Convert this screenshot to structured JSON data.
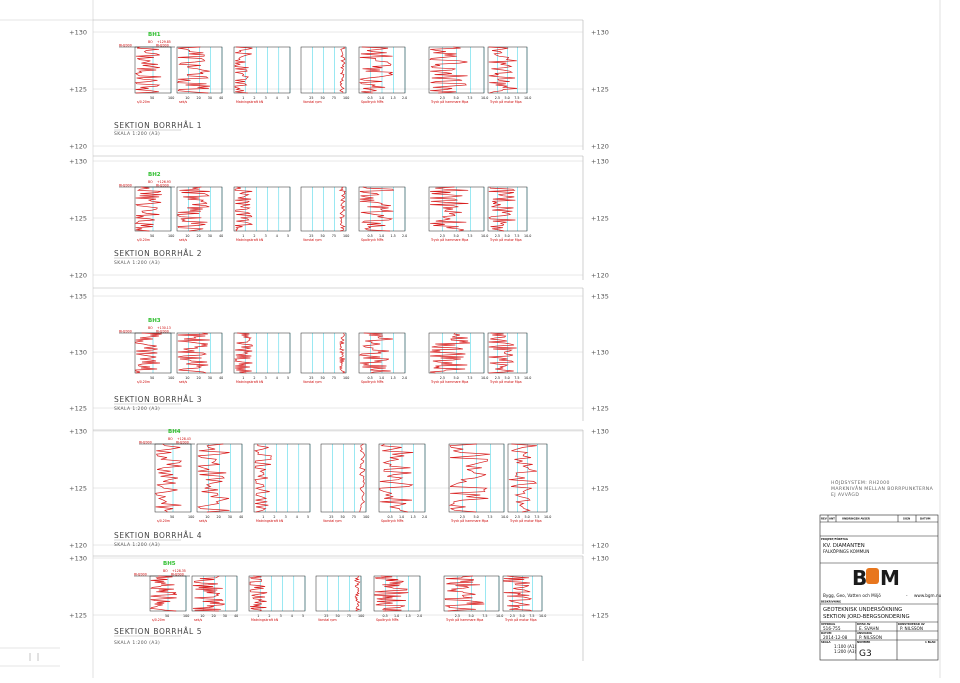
{
  "page": {
    "profile_start_label": "BO",
    "profile_ref_label": "RH2000",
    "note_lines": [
      "HÖJDSYSTEM: RH2000",
      "MARKNIVÅN MELLAN BORRPUNKTERNA",
      "EJ AVVÄGD"
    ],
    "axis_labels": {
      "p0": "s/0.20m",
      "p1": "sek/s",
      "p2": "Matningskraft kN",
      "p3": "Varvtal rpm",
      "p4": "Spoltryck MPa",
      "p5": "Tryck på hammare Mpa",
      "p6": "Tryck på motor Mpa"
    },
    "ticks": {
      "p0": [
        "50",
        "100"
      ],
      "p1": [
        "10",
        "20",
        "30",
        "40"
      ],
      "p2": [
        "1",
        "2",
        "3",
        "4",
        "5"
      ],
      "p3": [
        "25",
        "50",
        "75",
        "100"
      ],
      "p4": [
        "0.5",
        "1.0",
        "1.5",
        "2.0"
      ],
      "p5": [
        "2.5",
        "5.0",
        "7.5",
        "10.0"
      ],
      "p6": [
        "2.5",
        "5.0",
        "7.5",
        "10.0"
      ]
    }
  },
  "sections": [
    {
      "title": "SEKTION BORRHÅL 1",
      "scale": "SKALA 1:200 (A3)",
      "borehole": "BH1",
      "ground_level": "+129.85",
      "elevations": [
        "+130",
        "+125",
        "+120"
      ]
    },
    {
      "title": "SEKTION BORRHÅL 2",
      "scale": "SKALA 1:200 (A3)",
      "borehole": "BH2",
      "ground_level": "+126.93",
      "elevations": [
        "+130",
        "+125",
        "+120"
      ]
    },
    {
      "title": "SEKTION BORRHÅL 3",
      "scale": "SKALA 1:200 (A3)",
      "borehole": "BH3",
      "ground_level": "+130.13",
      "elevations": [
        "+135",
        "+130",
        "+125"
      ]
    },
    {
      "title": "SEKTION BORRHÅL 4",
      "scale": "SKALA 1:200 (A3)",
      "borehole": "BH4",
      "ground_level": "+128.43",
      "elevations": [
        "+130",
        "+125",
        "+120"
      ]
    },
    {
      "title": "SEKTION BORRHÅL 5",
      "scale": "SKALA 1:200 (A3)",
      "borehole": "BH5",
      "ground_level": "+128.35",
      "elevations": [
        "+130",
        "+125"
      ]
    }
  ],
  "title_block": {
    "rev_headers": [
      "REV",
      "ANT",
      "ÄNDRINGEN AVSER",
      "SIGN",
      "DATUM"
    ],
    "project_label": "PROJEKT/FÖRETAG",
    "project_name": "KV. DIAMANTEN",
    "project_sub": "FALKÖPINGS KOMMUN",
    "company": "Bygg, Geo, Vatten och Miljö",
    "company_sep": "-",
    "website": "www.bgm.nu",
    "logo_text": "BGM",
    "desc_label": "BESKRIVNING",
    "desc_1": "GEOTEKNISK UNDERSÖKNING",
    "desc_2": "SEKTION JORD-BERGSONDERING",
    "uppdrag_label": "UPPDRAG",
    "uppdrag": "516-755",
    "ritad_label": "RITAD AV",
    "ritad": "E. SVAHN",
    "konstruerad_label": "KONSTRUERAD AV",
    "konstruerad": "P. NILSSON",
    "datum_label": "DATUM",
    "datum": "2014-12-08",
    "ansvarig_label": "ANSVARIG",
    "ansvarig": "P. NILSSON",
    "skala_label": "SKALA",
    "skala_1": "1:100 (A1)",
    "skala_2": "1:200 (A3)",
    "nummer_label": "NUMMER",
    "nummer": "G3",
    "blad_label": "1 BLAD"
  },
  "colors": {
    "frame": "#b0b0b0",
    "data": "#d81c1c",
    "cyan": "#35d0e6",
    "bh": "#2fbf2f"
  }
}
